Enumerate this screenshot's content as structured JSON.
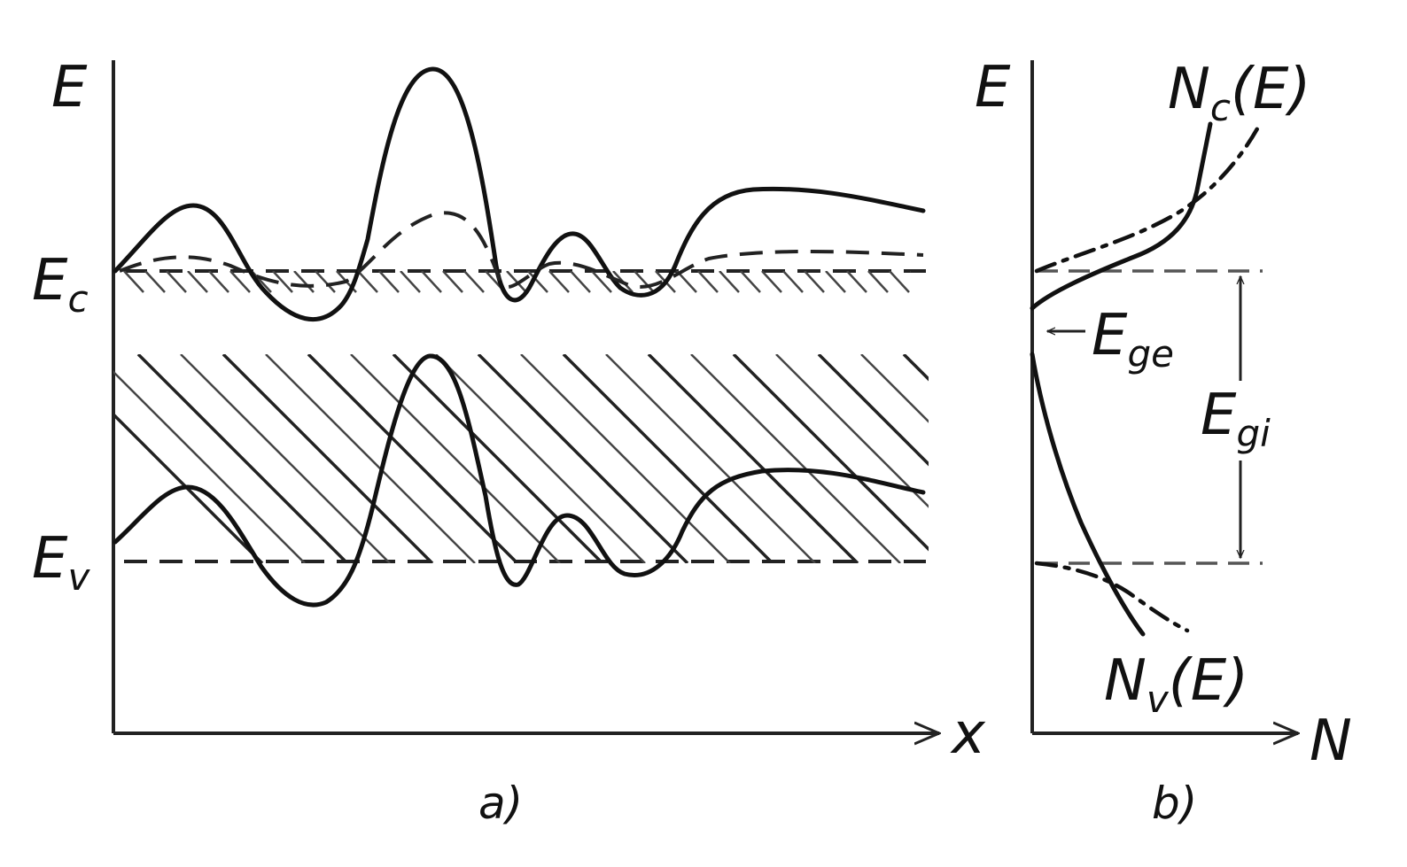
{
  "panel_a": {
    "y_axis_label": "E",
    "x_axis_label": "x",
    "conduction_label_main": "E",
    "conduction_label_sub": "c",
    "valence_label_main": "E",
    "valence_label_sub": "v",
    "caption": "a)"
  },
  "panel_b": {
    "y_axis_label": "E",
    "x_axis_label": "N",
    "nc_label_main": "N",
    "nc_label_sub": "c",
    "nc_label_rest": "(E)",
    "nv_label_main": "N",
    "nv_label_sub": "v",
    "nv_label_rest": "(E)",
    "ege_label_main": "E",
    "ege_label_sub": "ge",
    "egi_label_main": "E",
    "egi_label_sub": "gi",
    "caption": "b)"
  },
  "colors": {
    "ink": "#111111",
    "background": "#ffffff"
  }
}
